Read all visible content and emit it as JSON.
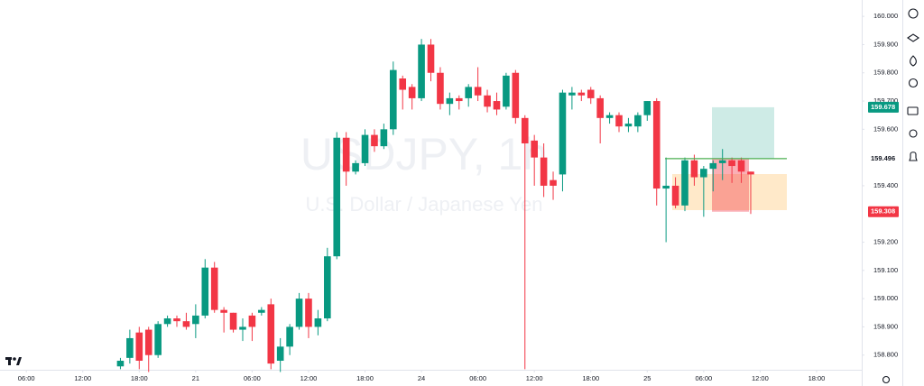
{
  "chart_data": {
    "type": "candlestick",
    "watermark": "USDJPY, 1h",
    "subtitle": "U.S. Dollar / Japanese Yen",
    "up_color": "#089981",
    "down_color": "#f23645",
    "x": [
      10,
      11,
      12,
      13,
      14,
      15,
      16,
      17,
      18,
      19,
      20,
      21,
      22,
      23,
      24,
      25,
      26,
      27,
      28,
      29,
      30,
      31,
      32,
      33,
      34,
      35,
      36,
      37,
      38,
      39,
      40,
      41,
      42,
      43,
      44,
      45,
      46,
      47,
      48,
      49,
      50,
      51,
      52,
      53,
      54,
      55,
      56,
      57,
      58,
      59,
      60,
      61,
      62,
      63,
      64,
      65,
      66,
      67,
      68,
      69,
      70,
      71,
      72,
      73,
      74,
      75,
      76,
      77
    ],
    "open": [
      158.76,
      158.79,
      158.88,
      158.89,
      158.8,
      158.91,
      158.93,
      158.92,
      158.91,
      158.94,
      159.11,
      158.96,
      158.95,
      158.89,
      158.94,
      158.95,
      158.98,
      158.78,
      158.83,
      158.9,
      159.0,
      158.9,
      158.93,
      159.15,
      159.57,
      159.45,
      159.48,
      159.58,
      159.54,
      159.6,
      159.78,
      159.75,
      159.71,
      159.9,
      159.8,
      159.69,
      159.71,
      159.71,
      159.75,
      159.72,
      159.7,
      159.68,
      159.8,
      159.64,
      159.56,
      159.5,
      159.42,
      159.44,
      159.72,
      159.73,
      159.74,
      159.71,
      159.64,
      159.65,
      159.61,
      159.61,
      159.65,
      159.7,
      159.39,
      159.4,
      159.33,
      159.49,
      159.43,
      159.46,
      159.48,
      159.49,
      159.49,
      159.45
    ],
    "high": [
      158.79,
      158.89,
      158.9,
      158.9,
      158.92,
      158.94,
      158.94,
      158.95,
      158.98,
      159.14,
      159.13,
      158.97,
      158.95,
      158.93,
      158.95,
      158.97,
      159.0,
      158.86,
      158.91,
      159.02,
      159.02,
      158.96,
      159.18,
      159.59,
      159.59,
      159.49,
      159.6,
      159.6,
      159.62,
      159.84,
      159.79,
      159.76,
      159.92,
      159.92,
      159.82,
      159.73,
      159.72,
      159.76,
      159.82,
      159.74,
      159.73,
      159.8,
      159.81,
      159.65,
      159.58,
      159.55,
      159.45,
      159.74,
      159.75,
      159.74,
      159.75,
      159.72,
      159.66,
      159.66,
      159.64,
      159.66,
      159.7,
      159.71,
      159.5,
      159.43,
      159.5,
      159.51,
      159.47,
      159.49,
      159.53,
      159.5,
      159.5,
      159.45
    ],
    "low": [
      158.75,
      158.77,
      158.75,
      158.74,
      158.79,
      158.9,
      158.9,
      158.89,
      158.86,
      158.93,
      158.95,
      158.88,
      158.88,
      158.85,
      158.85,
      158.94,
      158.75,
      158.74,
      158.8,
      158.89,
      158.86,
      158.87,
      158.92,
      159.14,
      159.4,
      159.44,
      159.47,
      159.52,
      159.53,
      159.58,
      159.67,
      159.67,
      159.7,
      159.77,
      159.67,
      159.65,
      159.67,
      159.68,
      159.7,
      159.66,
      159.65,
      159.67,
      159.62,
      158.75,
      159.4,
      159.36,
      159.35,
      159.38,
      159.67,
      159.7,
      159.69,
      159.55,
      159.62,
      159.59,
      159.59,
      159.59,
      159.63,
      159.33,
      159.2,
      159.32,
      159.31,
      159.4,
      159.29,
      159.38,
      159.42,
      159.41,
      159.41,
      159.3
    ],
    "close": [
      158.78,
      158.86,
      158.78,
      158.8,
      158.91,
      158.93,
      158.92,
      158.9,
      158.94,
      159.11,
      158.96,
      158.95,
      158.89,
      158.9,
      158.9,
      158.96,
      158.77,
      158.83,
      158.9,
      159.0,
      158.9,
      158.93,
      159.15,
      159.57,
      159.45,
      159.48,
      159.58,
      159.54,
      159.6,
      159.81,
      159.74,
      159.71,
      159.9,
      159.8,
      159.69,
      159.71,
      159.7,
      159.75,
      159.72,
      159.68,
      159.67,
      159.79,
      159.64,
      159.55,
      159.5,
      159.4,
      159.4,
      159.73,
      159.73,
      159.72,
      159.71,
      159.64,
      159.65,
      159.61,
      159.62,
      159.65,
      159.7,
      159.39,
      159.4,
      159.33,
      159.49,
      159.43,
      159.46,
      159.48,
      159.49,
      159.47,
      159.45,
      159.44
    ],
    "xlim": [
      -2.8,
      88.8
    ],
    "xticks": [
      {
        "value": 0,
        "label": "06:00"
      },
      {
        "value": 6,
        "label": "12:00"
      },
      {
        "value": 12,
        "label": "18:00"
      },
      {
        "value": 18,
        "label": "21"
      },
      {
        "value": 24,
        "label": "06:00"
      },
      {
        "value": 30,
        "label": "12:00"
      },
      {
        "value": 36,
        "label": "18:00"
      },
      {
        "value": 42,
        "label": "24"
      },
      {
        "value": 48,
        "label": "06:00"
      },
      {
        "value": 54,
        "label": "12:00"
      },
      {
        "value": 60,
        "label": "18:00"
      },
      {
        "value": 66,
        "label": "25"
      },
      {
        "value": 72,
        "label": "06:00"
      },
      {
        "value": 78,
        "label": "12:00"
      },
      {
        "value": 84,
        "label": "18:00"
      }
    ],
    "ylim": [
      158.748,
      160.058
    ],
    "yticks": [
      {
        "value": 160.0,
        "label": "160.000"
      },
      {
        "value": 159.9,
        "label": "159.900"
      },
      {
        "value": 159.8,
        "label": "159.800"
      },
      {
        "value": 159.7,
        "label": "159.700"
      },
      {
        "value": 159.6,
        "label": "159.600"
      },
      {
        "value": 159.4,
        "label": "159.400"
      },
      {
        "value": 159.2,
        "label": "159.200"
      },
      {
        "value": 159.1,
        "label": "159.100"
      },
      {
        "value": 159.0,
        "label": "159.000"
      },
      {
        "value": 158.9,
        "label": "158.900"
      },
      {
        "value": 158.8,
        "label": "158.800"
      }
    ],
    "grid": false,
    "position": {
      "target": 159.678,
      "entry": 159.496,
      "stop": 159.308,
      "target_color": "#089981",
      "entry_color": "#4caf50",
      "stop_color": "#f23645"
    }
  }
}
